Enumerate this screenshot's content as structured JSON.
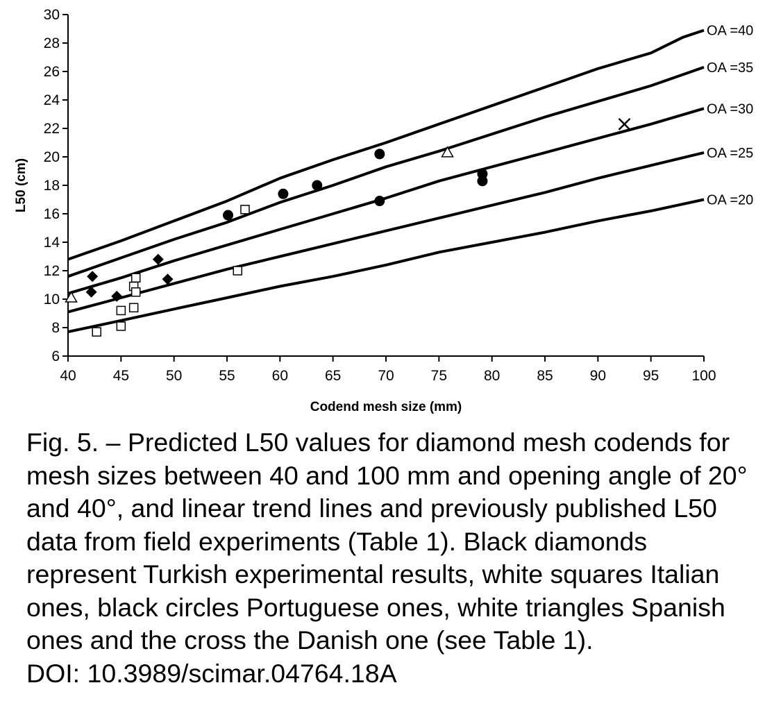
{
  "chart_data": {
    "type": "line",
    "xlabel": "Codend mesh size (mm)",
    "ylabel": "L50 (cm)",
    "xlim": [
      40,
      100
    ],
    "ylim": [
      6,
      30
    ],
    "xticks": [
      40,
      45,
      50,
      55,
      60,
      65,
      70,
      75,
      80,
      85,
      90,
      95,
      100
    ],
    "yticks": [
      6,
      8,
      10,
      12,
      14,
      16,
      18,
      20,
      22,
      24,
      26,
      28,
      30
    ],
    "grid": false,
    "series": [
      {
        "name": "OA =40",
        "x": [
          40,
          45,
          50,
          55,
          60,
          65,
          70,
          75,
          80,
          85,
          90,
          95,
          98,
          100
        ],
        "y": [
          12.8,
          14.1,
          15.5,
          16.9,
          18.5,
          19.8,
          21.0,
          22.3,
          23.6,
          24.9,
          26.2,
          27.3,
          28.4,
          28.9
        ]
      },
      {
        "name": "OA =35",
        "x": [
          40,
          45,
          50,
          55,
          60,
          65,
          70,
          75,
          80,
          85,
          90,
          95,
          100
        ],
        "y": [
          11.6,
          12.9,
          14.2,
          15.4,
          16.8,
          18.0,
          19.3,
          20.4,
          21.6,
          22.8,
          23.9,
          25.0,
          26.3
        ]
      },
      {
        "name": "OA =30",
        "x": [
          40,
          45,
          50,
          55,
          60,
          65,
          70,
          75,
          80,
          85,
          90,
          95,
          100
        ],
        "y": [
          10.4,
          11.5,
          12.7,
          13.8,
          14.9,
          16.0,
          17.1,
          18.3,
          19.3,
          20.3,
          21.3,
          22.3,
          23.4
        ]
      },
      {
        "name": "OA =25",
        "x": [
          40,
          45,
          50,
          55,
          60,
          65,
          70,
          75,
          80,
          85,
          90,
          95,
          100
        ],
        "y": [
          9.1,
          10.1,
          11.1,
          12.1,
          13.0,
          13.9,
          14.8,
          15.7,
          16.6,
          17.5,
          18.5,
          19.4,
          20.3
        ]
      },
      {
        "name": "OA =20",
        "x": [
          40,
          45,
          50,
          55,
          60,
          65,
          70,
          75,
          80,
          85,
          90,
          95,
          100
        ],
        "y": [
          7.7,
          8.5,
          9.3,
          10.1,
          10.9,
          11.6,
          12.4,
          13.3,
          14.0,
          14.7,
          15.5,
          16.2,
          17.0
        ]
      }
    ],
    "points": [
      {
        "group": "Turkish",
        "marker": "diamond-filled",
        "x": [
          42.3,
          42.2,
          44.6,
          48.5,
          49.4
        ],
        "y": [
          11.6,
          10.5,
          10.2,
          12.8,
          11.4
        ]
      },
      {
        "group": "Italian",
        "marker": "square-open",
        "x": [
          42.7,
          45.0,
          45.0,
          46.2,
          46.2,
          46.4,
          46.4,
          56.0,
          56.7
        ],
        "y": [
          7.7,
          9.2,
          8.1,
          9.4,
          10.9,
          11.5,
          10.5,
          12.0,
          16.3
        ]
      },
      {
        "group": "Portuguese",
        "marker": "circle-filled",
        "x": [
          55.1,
          60.3,
          63.5,
          69.4,
          69.4,
          79.1,
          79.1
        ],
        "y": [
          15.9,
          17.4,
          18.0,
          20.2,
          16.9,
          18.8,
          18.3
        ]
      },
      {
        "group": "Spanish",
        "marker": "triangle-open",
        "x": [
          40.3,
          75.8
        ],
        "y": [
          10.1,
          20.3
        ]
      },
      {
        "group": "Danish",
        "marker": "cross",
        "x": [
          92.5
        ],
        "y": [
          22.3
        ]
      }
    ]
  },
  "caption": {
    "text": "Fig. 5. – Predicted L50 values for diamond mesh codends for mesh sizes between 40 and 100 mm and opening angle of 20° and 40°, and linear trend lines and previously published L50 data from field experiments (Table 1). Black diamonds represent Turkish experimental results, white squares Italian ones, black circles Portuguese ones, white triangles Spanish ones and the cross the Danish one (see Table 1).",
    "doi": "DOI: 10.3989/scimar.04764.18A"
  }
}
